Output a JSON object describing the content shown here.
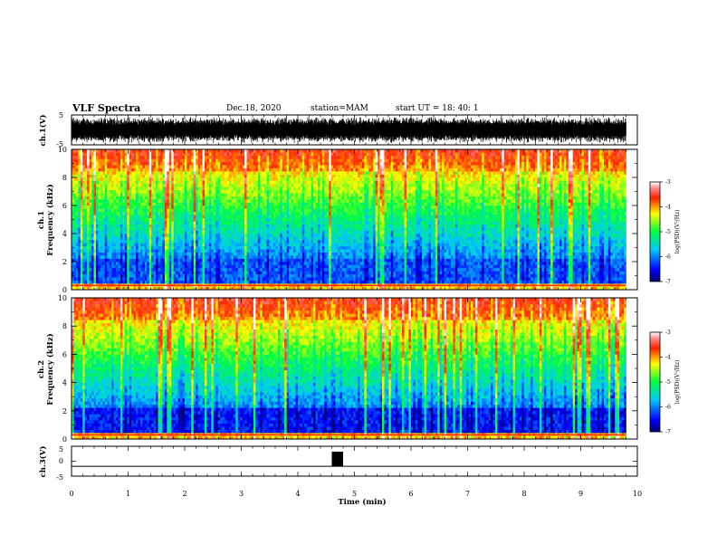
{
  "header": {
    "title": "VLF Spectra",
    "date": "Dec.18, 2020",
    "station": "station=MAM",
    "start": "start  UT =   18: 40: 1"
  },
  "chart_data": [
    {
      "type": "line",
      "panel": "channel-1 waveform",
      "ylabel": "ch.1(V)",
      "ylim": [
        -5,
        5
      ],
      "ytick_labels": [
        "5",
        "-5"
      ],
      "xlim": [
        0,
        10
      ],
      "color": "#000000"
    },
    {
      "type": "heatmap",
      "panel": "channel-1 spectrogram",
      "ylabel_line1": "ch.1",
      "ylabel_line2": "Frequency (kHz)",
      "ylim": [
        0,
        10
      ],
      "yticks": [
        0,
        2,
        4,
        6,
        8,
        10
      ],
      "xlim": [
        0,
        10
      ],
      "data_extent_min": 9.8,
      "colorbar": {
        "ticks": [
          "-3",
          "-4",
          "-5",
          "-6",
          "-7"
        ],
        "range": [
          -7,
          -3
        ],
        "label": "log(PSD)(V²/Hz)"
      }
    },
    {
      "type": "heatmap",
      "panel": "channel-2 spectrogram",
      "ylabel_line1": "ch.2",
      "ylabel_line2": "Frequency (kHz)",
      "ylim": [
        0,
        10
      ],
      "yticks": [
        0,
        2,
        4,
        6,
        8,
        10
      ],
      "xlim": [
        0,
        10
      ],
      "data_extent_min": 9.8,
      "colorbar": {
        "ticks": [
          "-3",
          "-4",
          "-5",
          "-6",
          "-7"
        ],
        "range": [
          -7,
          -3
        ],
        "label": "log(PSD)(V²/Hz)"
      }
    },
    {
      "type": "line",
      "panel": "channel-3 signal",
      "ylabel": "ch.3(V)",
      "ylim": [
        -5,
        5
      ],
      "ytick_labels": [
        "5",
        "0",
        "-5"
      ],
      "baseline_v": -1.7,
      "pulse": {
        "x_start_min": 4.6,
        "x_end_min": 4.8,
        "v_top": 3.2
      },
      "xlim": [
        0,
        10
      ],
      "xlabel": "Time (min)",
      "xticks": [
        0,
        1,
        2,
        3,
        4,
        5,
        6,
        7,
        8,
        9,
        10
      ]
    }
  ],
  "colors": {
    "heat_low": "#000090",
    "heat_mid": "#00ff00",
    "heat_high": "#ff0000",
    "axes": "#000000"
  }
}
